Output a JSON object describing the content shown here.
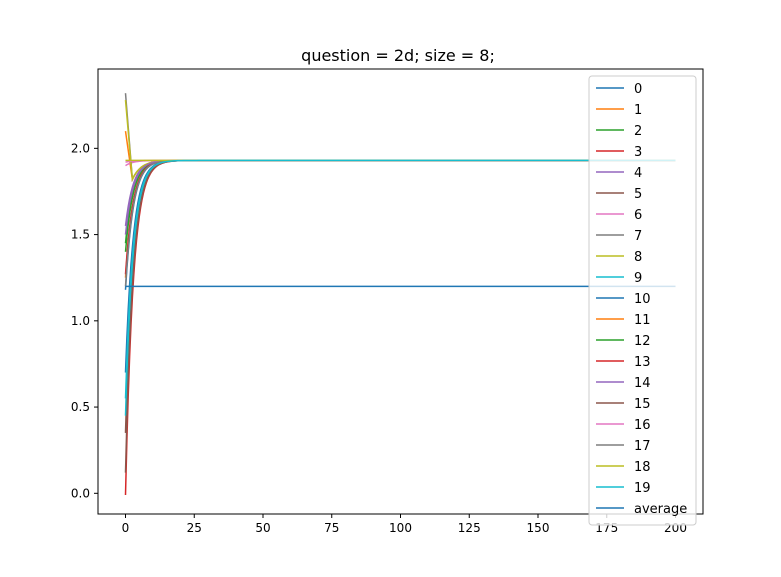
{
  "chart_data": {
    "type": "line",
    "title": "question = 2d; size = 8;",
    "xlabel": "",
    "ylabel": "",
    "xlim": [
      -10,
      210
    ],
    "ylim": [
      -0.12,
      2.46
    ],
    "xticks": [
      0,
      25,
      50,
      75,
      100,
      125,
      150,
      175,
      200
    ],
    "xtick_labels": [
      "0",
      "25",
      "50",
      "75",
      "100",
      "125",
      "150",
      "175",
      "200"
    ],
    "yticks": [
      0.0,
      0.5,
      1.0,
      1.5,
      2.0
    ],
    "ytick_labels": [
      "0.0",
      "0.5",
      "1.0",
      "1.5",
      "2.0"
    ],
    "grid": false,
    "legend_position": "top-right",
    "x_end": 200,
    "plateau": 1.93,
    "series": [
      {
        "name": "0",
        "color": "#1f77b4",
        "start": 0.7
      },
      {
        "name": "1",
        "color": "#ff7f0e",
        "start": 2.1
      },
      {
        "name": "2",
        "color": "#2ca02c",
        "start": 1.45
      },
      {
        "name": "3",
        "color": "#d62728",
        "start": -0.01
      },
      {
        "name": "4",
        "color": "#9467bd",
        "start": 1.55
      },
      {
        "name": "5",
        "color": "#8c564b",
        "start": 0.35
      },
      {
        "name": "6",
        "color": "#e377c2",
        "start": 1.9
      },
      {
        "name": "7",
        "color": "#7f7f7f",
        "start": 2.32
      },
      {
        "name": "8",
        "color": "#bcbd22",
        "start": 2.28
      },
      {
        "name": "9",
        "color": "#17becf",
        "start": 0.45
      },
      {
        "name": "10",
        "color": "#1f77b4",
        "start": 1.18
      },
      {
        "name": "11",
        "color": "#ff7f0e",
        "start": 1.25
      },
      {
        "name": "12",
        "color": "#2ca02c",
        "start": 1.4
      },
      {
        "name": "13",
        "color": "#d62728",
        "start": 1.27
      },
      {
        "name": "14",
        "color": "#9467bd",
        "start": 1.5
      },
      {
        "name": "15",
        "color": "#8c564b",
        "start": 0.12
      },
      {
        "name": "16",
        "color": "#e377c2",
        "start": 1.92
      },
      {
        "name": "17",
        "color": "#7f7f7f",
        "start": 1.2
      },
      {
        "name": "18",
        "color": "#bcbd22",
        "start": 1.93
      },
      {
        "name": "19",
        "color": "#17becf",
        "start": 0.55
      },
      {
        "name": "average",
        "color": "#1f77b4",
        "constant": 1.2
      }
    ]
  }
}
